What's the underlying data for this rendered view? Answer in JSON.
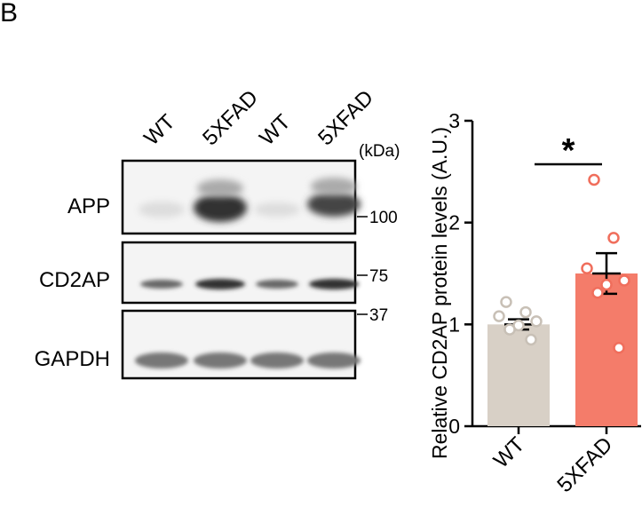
{
  "panel_label": "B",
  "blot": {
    "lanes": [
      "WT",
      "5XFAD",
      "WT",
      "5XFAD"
    ],
    "unit": "(kDa)",
    "rows": [
      "APP",
      "CD2AP",
      "GAPDH"
    ],
    "markers": [
      "100",
      "75",
      "37"
    ]
  },
  "chart_data": {
    "type": "bar",
    "y_label": "Relative CD2AP protein levels (A.U.)",
    "categories": [
      "WT",
      "5XFAD"
    ],
    "values": [
      1.0,
      1.5
    ],
    "errors": [
      0.05,
      0.2
    ],
    "colors": [
      "#d8d0c6",
      "#f47c6a"
    ],
    "point_colors": [
      "#c8c0b6",
      "#f06e5c"
    ],
    "points": [
      [
        1.22,
        1.12,
        1.08,
        1.03,
        0.99,
        0.95,
        0.85
      ],
      [
        2.42,
        1.85,
        1.55,
        1.43,
        1.39,
        1.31,
        0.77
      ]
    ],
    "ylim": [
      0,
      3
    ],
    "yticks": [
      0,
      1,
      2,
      3
    ],
    "significance": "*"
  }
}
